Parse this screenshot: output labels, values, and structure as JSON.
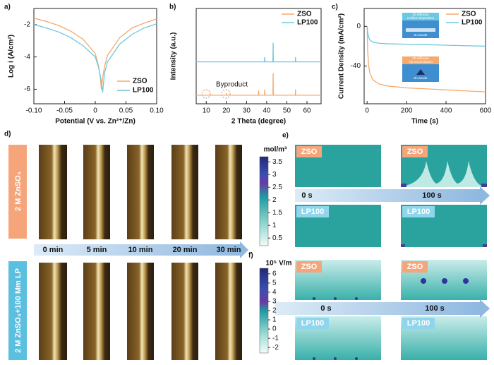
{
  "chart_data": [
    {
      "type": "line",
      "label": "a)",
      "xlabel": "Potential (V vs. Zn²⁺/Zn)",
      "ylabel": "Log i (A/cm²)",
      "x": [
        -0.1,
        -0.08,
        -0.06,
        -0.04,
        -0.02,
        0,
        0.005,
        0.008,
        0.01,
        0.012,
        0.015,
        0.02,
        0.04,
        0.06,
        0.08,
        0.1
      ],
      "series": [
        {
          "name": "ZSO",
          "color": "#f5a96b",
          "values": [
            -1.6,
            -1.8,
            -2.05,
            -2.4,
            -2.9,
            -3.8,
            -4.5,
            -5.2,
            -6.0,
            -5.3,
            -4.6,
            -3.9,
            -2.8,
            -2.2,
            -1.9,
            -1.65
          ]
        },
        {
          "name": "LP100",
          "color": "#6cc8e0",
          "values": [
            -2.0,
            -2.2,
            -2.45,
            -2.8,
            -3.3,
            -4.0,
            -4.6,
            -5.1,
            -5.6,
            -6.2,
            -5.0,
            -4.3,
            -3.2,
            -2.6,
            -2.2,
            -1.95
          ]
        }
      ],
      "xlim": [
        -0.1,
        0.1
      ],
      "xticks": [
        {
          "value": -0.1,
          "label": "-0.10"
        },
        {
          "value": -0.05,
          "label": "-0.05"
        },
        0,
        {
          "value": 0.05,
          "label": "0.05"
        },
        {
          "value": 0.1,
          "label": "0.10"
        }
      ],
      "ylim": [
        -6.9,
        -1.0
      ],
      "yticks": [
        -2,
        -4,
        -6
      ],
      "legend": "lower right"
    },
    {
      "type": "line",
      "label": "b)",
      "xlabel": "2 Theta (degree)",
      "ylabel": "Intensity (a.u.)",
      "annotation": "Byproduct",
      "x": [
        5,
        11.9,
        12,
        12.1,
        19.9,
        20,
        20.1,
        35.9,
        36,
        36.1,
        38.9,
        39,
        39.1,
        43.1,
        43.2,
        43.3,
        54.2,
        54.3,
        54.4,
        67
      ],
      "series": [
        {
          "name": "ZSO",
          "color": "#f5a96b",
          "values": [
            0.9,
            0.9,
            1.1,
            0.9,
            0.9,
            1.1,
            0.9,
            0.9,
            1.4,
            0.9,
            0.9,
            1.5,
            0.9,
            0.9,
            3.2,
            0.9,
            0.9,
            1.5,
            0.9,
            0.9
          ]
        },
        {
          "name": "LP100",
          "color": "#6cc8e0",
          "values": [
            4.4,
            4.4,
            4.4,
            4.4,
            4.4,
            4.4,
            4.4,
            4.4,
            4.4,
            4.4,
            4.4,
            4.9,
            4.4,
            4.4,
            6.4,
            4.4,
            4.4,
            4.9,
            4.4,
            4.4
          ]
        }
      ],
      "xlim": [
        5,
        67
      ],
      "xticks": [
        10,
        20,
        30,
        40,
        50,
        60
      ],
      "ylim": [
        0,
        10
      ],
      "yticks": [],
      "legend": "upper right"
    },
    {
      "type": "line",
      "label": "c)",
      "xlabel": "Time (s)",
      "ylabel": "Current Density (mA/cm²)",
      "insets": [
        "3D diffusion",
        "Uniform Deposition",
        "Zn anode",
        "2D diffusion",
        "Tip accumulation",
        "Zn anode"
      ],
      "x": [
        0,
        3,
        8,
        15,
        30,
        60,
        100,
        200,
        300,
        400,
        500,
        600
      ],
      "series": [
        {
          "name": "ZSO",
          "color": "#f5a96b",
          "values": [
            0,
            -25,
            -40,
            -48,
            -54,
            -58,
            -60,
            -62,
            -63,
            -64,
            -65,
            -66
          ]
        },
        {
          "name": "LP100",
          "color": "#6cc8e0",
          "values": [
            0,
            -6,
            -11,
            -14,
            -16,
            -17,
            -17.5,
            -18,
            -18.5,
            -19,
            -19.5,
            -20
          ]
        }
      ],
      "xlim": [
        -15,
        600
      ],
      "xticks": [
        0,
        200,
        400,
        600
      ],
      "ylim": [
        -78,
        18
      ],
      "yticks": [
        0,
        -40
      ],
      "legend": "upper right"
    },
    {
      "type": "colorbar",
      "title": "mol/m³",
      "ylim": [
        0.2,
        3.7
      ],
      "yticks": [
        0.5,
        1,
        1.5,
        2,
        2.5,
        3,
        3.5
      ]
    },
    {
      "type": "colorbar",
      "title": "10⁵ V/m",
      "ylim": [
        -2.6,
        6.6
      ],
      "yticks": [
        -2,
        -1,
        0,
        1,
        2,
        3,
        4,
        5,
        6
      ]
    }
  ],
  "panel_d": {
    "label": "d)",
    "row_labels": [
      "2 M ZnSO₄",
      "2 M ZnSO₄+100 Mm LP"
    ],
    "times": [
      "0 min",
      "5 min",
      "10 min",
      "20 min",
      "30 min"
    ]
  },
  "panel_e": {
    "label": "e)",
    "tags": [
      "ZSO",
      "ZSO",
      "LP100",
      "LP100"
    ],
    "times": [
      "0 s",
      "100 s"
    ]
  },
  "panel_f": {
    "label": "f)",
    "tags": [
      "ZSO",
      "ZSO",
      "LP100",
      "LP100"
    ],
    "times": [
      "0 s",
      "100 s"
    ]
  }
}
